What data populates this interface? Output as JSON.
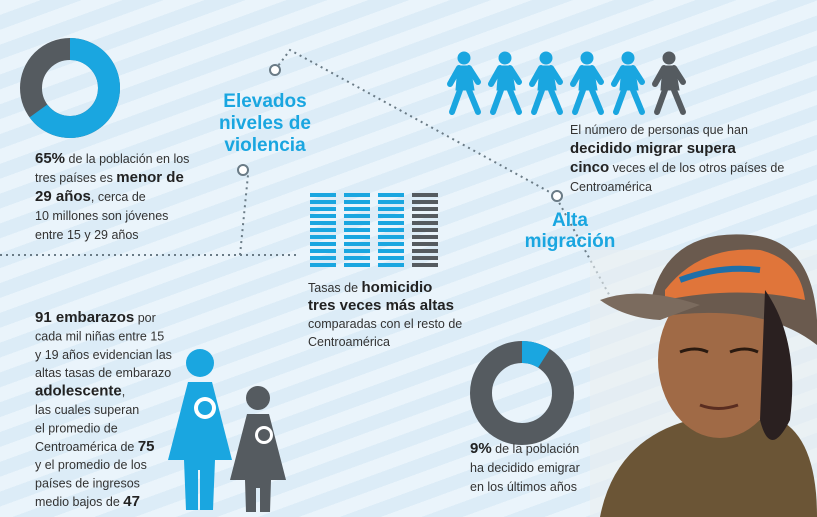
{
  "violence_heading": [
    "Elevados",
    "niveles de",
    "violencia"
  ],
  "migration_heading": [
    "Alta",
    "migración"
  ],
  "youth": {
    "percent": 65,
    "lines": [
      [
        {
          "text": "65%",
          "bold": true
        },
        {
          "text": " de la población en los"
        }
      ],
      [
        {
          "text": "tres países es "
        },
        {
          "text": "menor de",
          "bold": true
        }
      ],
      [
        {
          "text": "29 años",
          "bold": true
        },
        {
          "text": ", cerca de"
        }
      ],
      [
        {
          "text": "10 millones son jóvenes"
        }
      ],
      [
        {
          "text": "entre 15 y 29 años"
        }
      ]
    ]
  },
  "migration": {
    "lines": [
      [
        {
          "text": "El número de personas que han"
        }
      ],
      [
        {
          "text": "decidido migrar supera",
          "bold": true
        }
      ],
      [
        {
          "text": "cinco",
          "bold": true
        },
        {
          "text": " veces el de los otros países de"
        }
      ],
      [
        {
          "text": "Centroamérica"
        }
      ]
    ]
  },
  "homicide": {
    "lines": [
      [
        {
          "text": "Tasas de "
        },
        {
          "text": "homicidio",
          "bold": true
        }
      ],
      [
        {
          "text": "tres veces más altas",
          "bold": true
        }
      ],
      [
        {
          "text": "comparadas con el resto de"
        }
      ],
      [
        {
          "text": "Centroamérica"
        }
      ]
    ]
  },
  "pregnancy": {
    "lines": [
      [
        {
          "text": "91 embarazos",
          "bold": true
        },
        {
          "text": " por"
        }
      ],
      [
        {
          "text": "cada mil niñas entre 15"
        }
      ],
      [
        {
          "text": "y 19 años evidencian las"
        }
      ],
      [
        {
          "text": "altas tasas de embarazo"
        }
      ],
      [
        {
          "text": "adolescente",
          "bold": true
        },
        {
          "text": ","
        }
      ],
      [
        {
          "text": "las cuales superan"
        }
      ],
      [
        {
          "text": "el promedio de"
        }
      ],
      [
        {
          "text": "Centroamérica de "
        },
        {
          "text": "75",
          "bold": true
        }
      ],
      [
        {
          "text": "y el promedio de los"
        }
      ],
      [
        {
          "text": "países de ingresos"
        }
      ],
      [
        {
          "text": "medio bajos de "
        },
        {
          "text": "47",
          "bold": true
        }
      ]
    ]
  },
  "emigration": {
    "percent": 9,
    "lines": [
      [
        {
          "text": "9%",
          "bold": true
        },
        {
          "text": " de la población"
        }
      ],
      [
        {
          "text": "ha decidido emigrar"
        }
      ],
      [
        {
          "text": "en los últimos años"
        }
      ]
    ]
  }
}
